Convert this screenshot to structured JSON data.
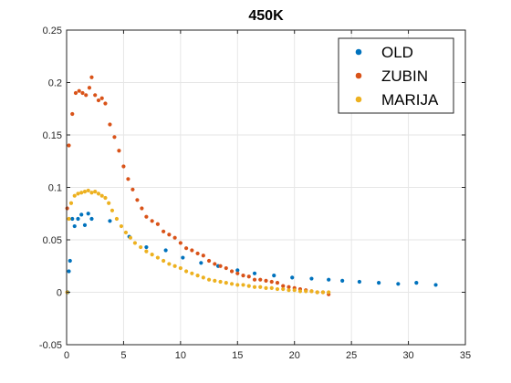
{
  "chart_data": {
    "type": "scatter",
    "title": "450K",
    "xlabel": "",
    "ylabel": "",
    "xlim": [
      0,
      35
    ],
    "ylim": [
      -0.05,
      0.25
    ],
    "x_ticks": [
      0,
      5,
      10,
      15,
      20,
      25,
      30,
      35
    ],
    "y_ticks": [
      -0.05,
      0,
      0.05,
      0.1,
      0.15,
      0.2,
      0.25
    ],
    "x_tick_labels": [
      "0",
      "5",
      "10",
      "15",
      "20",
      "25",
      "30",
      "35"
    ],
    "y_tick_labels": [
      "-0.05",
      "0",
      "0.05",
      "0.1",
      "0.15",
      "0.2",
      "0.25"
    ],
    "grid": true,
    "legend_position": "top-right",
    "series": [
      {
        "name": "OLD",
        "color": "#0072BD",
        "x": [
          0.1,
          0.2,
          0.3,
          0.5,
          0.7,
          1.0,
          1.3,
          1.6,
          1.9,
          2.2,
          3.8,
          5.5,
          7.0,
          8.7,
          10.2,
          11.8,
          13.3,
          15.0,
          16.5,
          18.2,
          19.8,
          21.5,
          23.0,
          24.2,
          25.7,
          27.4,
          29.1,
          30.7,
          32.4
        ],
        "y": [
          0.0,
          0.02,
          0.03,
          0.07,
          0.063,
          0.07,
          0.074,
          0.064,
          0.075,
          0.07,
          0.068,
          0.053,
          0.043,
          0.04,
          0.033,
          0.028,
          0.025,
          0.021,
          0.018,
          0.016,
          0.014,
          0.013,
          0.012,
          0.011,
          0.01,
          0.009,
          0.008,
          0.009,
          0.007
        ]
      },
      {
        "name": "ZUBIN",
        "color": "#D95319",
        "x": [
          0.05,
          0.2,
          0.5,
          0.8,
          1.1,
          1.4,
          1.7,
          2.0,
          2.2,
          2.5,
          2.8,
          3.1,
          3.4,
          3.8,
          4.2,
          4.6,
          5.0,
          5.4,
          5.8,
          6.2,
          6.6,
          7.0,
          7.5,
          8.0,
          8.5,
          9.0,
          9.5,
          10.0,
          10.5,
          11.0,
          11.5,
          12.0,
          12.5,
          13.0,
          13.5,
          14.0,
          14.5,
          15.0,
          15.5,
          16.0,
          16.5,
          17.0,
          17.5,
          18.0,
          18.5,
          19.0,
          19.5,
          20.0,
          20.5,
          21.0,
          21.5,
          22.0,
          22.5,
          23.0
        ],
        "y": [
          0.08,
          0.14,
          0.17,
          0.19,
          0.192,
          0.19,
          0.188,
          0.195,
          0.205,
          0.188,
          0.183,
          0.185,
          0.18,
          0.16,
          0.148,
          0.135,
          0.12,
          0.108,
          0.098,
          0.088,
          0.08,
          0.072,
          0.068,
          0.065,
          0.058,
          0.055,
          0.052,
          0.047,
          0.042,
          0.04,
          0.037,
          0.035,
          0.03,
          0.027,
          0.025,
          0.023,
          0.02,
          0.018,
          0.016,
          0.015,
          0.012,
          0.012,
          0.011,
          0.01,
          0.009,
          0.006,
          0.005,
          0.004,
          0.003,
          0.002,
          0.001,
          0.0,
          0.0,
          -0.002
        ]
      },
      {
        "name": "MARIJA",
        "color": "#EDB120",
        "x": [
          0.05,
          0.2,
          0.4,
          0.7,
          1.0,
          1.3,
          1.6,
          1.9,
          2.2,
          2.5,
          2.8,
          3.1,
          3.4,
          3.7,
          4.0,
          4.4,
          4.8,
          5.2,
          5.6,
          6.0,
          6.5,
          7.0,
          7.5,
          8.0,
          8.5,
          9.0,
          9.5,
          10.0,
          10.5,
          11.0,
          11.5,
          12.0,
          12.5,
          13.0,
          13.5,
          14.0,
          14.5,
          15.0,
          15.5,
          16.0,
          16.5,
          17.0,
          17.5,
          18.0,
          18.5,
          19.0,
          19.5,
          20.0,
          20.5,
          21.0,
          21.5,
          22.0,
          22.5,
          23.0
        ],
        "y": [
          0.0,
          0.07,
          0.085,
          0.092,
          0.094,
          0.095,
          0.096,
          0.097,
          0.095,
          0.096,
          0.094,
          0.092,
          0.09,
          0.085,
          0.078,
          0.07,
          0.063,
          0.057,
          0.052,
          0.047,
          0.043,
          0.039,
          0.036,
          0.033,
          0.03,
          0.027,
          0.025,
          0.023,
          0.02,
          0.018,
          0.016,
          0.014,
          0.012,
          0.011,
          0.01,
          0.009,
          0.008,
          0.007,
          0.007,
          0.006,
          0.005,
          0.005,
          0.004,
          0.004,
          0.003,
          0.003,
          0.002,
          0.002,
          0.001,
          0.001,
          0.001,
          0.0,
          0.0,
          0.0
        ]
      }
    ]
  }
}
